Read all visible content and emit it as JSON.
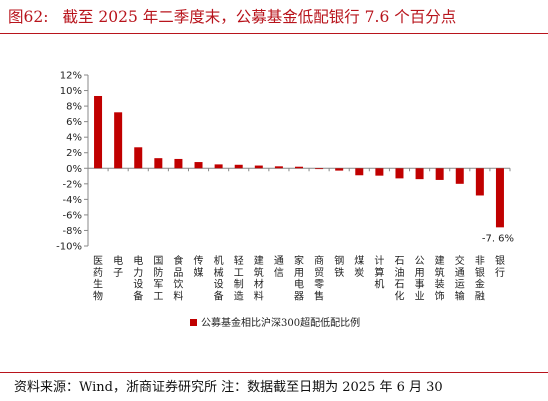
{
  "header": {
    "figure_number": "图62:",
    "title_text": "截至 2025 年二季度末，公募基金低配银行 7.6 个百分点"
  },
  "footer": {
    "source_text": "资料来源：Wind，浙商证券研究所 注：数据截至日期为 2025 年 6 月 30"
  },
  "colors": {
    "bar": "#c00000",
    "axis": "#888888",
    "text": "#222222",
    "title": "#b8141c"
  },
  "chart_data": {
    "type": "bar",
    "categories": [
      "医药生物",
      "电子",
      "电力设备",
      "国防军工",
      "食品饮料",
      "传媒",
      "机械设备",
      "轻工制造",
      "建筑材料",
      "通信",
      "家用电器",
      "商贸零售",
      "钢铁",
      "煤炭",
      "计算机",
      "石油石化",
      "公用事业",
      "建筑装饰",
      "交通运输",
      "非银金融",
      "银行"
    ],
    "series": [
      {
        "name": "公募基金相比沪深300超配低配比例",
        "values": [
          9.3,
          7.2,
          2.7,
          1.3,
          1.2,
          0.8,
          0.5,
          0.45,
          0.35,
          0.25,
          0.2,
          -0.1,
          -0.3,
          -0.9,
          -0.95,
          -1.3,
          -1.4,
          -1.5,
          -2.0,
          -3.5,
          -7.6
        ]
      }
    ],
    "ylim": [
      -10,
      12
    ],
    "yticks": [
      "-10%",
      "-8%",
      "-6%",
      "-4%",
      "-2%",
      "0%",
      "2%",
      "4%",
      "6%",
      "8%",
      "10%",
      "12%"
    ],
    "grid": false,
    "legend_position": "bottom-center",
    "annotations": [
      {
        "category": "银行",
        "text": "-7. 6%"
      }
    ]
  }
}
